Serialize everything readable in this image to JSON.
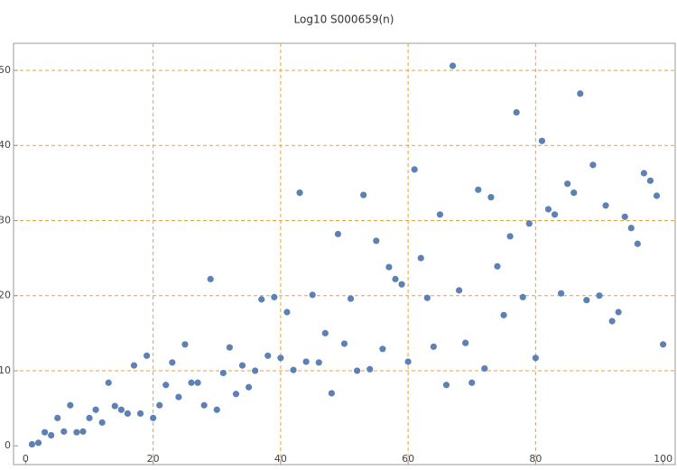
{
  "chart_data": {
    "type": "scatter",
    "title": "Log10 S000659(n)",
    "x": [
      1,
      2,
      3,
      4,
      5,
      6,
      7,
      8,
      9,
      10,
      11,
      12,
      13,
      14,
      15,
      16,
      17,
      18,
      19,
      20,
      21,
      22,
      23,
      24,
      25,
      26,
      27,
      28,
      29,
      30,
      31,
      32,
      33,
      34,
      35,
      36,
      37,
      38,
      39,
      40,
      41,
      42,
      43,
      44,
      45,
      46,
      47,
      48,
      49,
      50,
      51,
      52,
      53,
      54,
      55,
      56,
      57,
      58,
      59,
      60,
      61,
      62,
      63,
      64,
      65,
      66,
      67,
      68,
      69,
      70,
      71,
      72,
      73,
      74,
      75,
      76,
      77,
      78,
      79,
      80,
      81,
      82,
      83,
      84,
      85,
      86,
      87,
      88,
      89,
      90,
      91,
      92,
      93,
      94,
      95,
      96,
      97,
      98,
      99,
      100
    ],
    "values": [
      0.2,
      0.4,
      1.8,
      1.4,
      3.7,
      1.9,
      5.4,
      1.8,
      1.9,
      3.7,
      4.8,
      3.1,
      8.4,
      5.3,
      4.8,
      4.3,
      10.7,
      4.3,
      12.0,
      3.7,
      5.4,
      8.1,
      11.1,
      6.5,
      13.5,
      8.4,
      8.4,
      5.4,
      22.2,
      4.8,
      9.7,
      13.1,
      6.9,
      10.7,
      7.8,
      10.0,
      19.5,
      12.0,
      19.8,
      11.7,
      17.8,
      10.1,
      33.7,
      11.2,
      20.1,
      11.1,
      15.0,
      7.0,
      28.2,
      13.6,
      19.6,
      10.0,
      33.4,
      10.2,
      27.3,
      12.9,
      23.8,
      22.2,
      21.5,
      11.2,
      36.8,
      25.0,
      19.7,
      13.2,
      30.8,
      8.1,
      50.6,
      20.7,
      13.7,
      8.4,
      34.1,
      10.3,
      33.1,
      23.9,
      17.4,
      27.9,
      44.4,
      19.8,
      29.6,
      11.7,
      40.6,
      31.5,
      30.8,
      20.3,
      34.9,
      33.7,
      46.9,
      19.4,
      37.4,
      20.0,
      32.0,
      16.6,
      17.8,
      30.5,
      29.0,
      26.9,
      36.3,
      35.3,
      33.3,
      13.5
    ],
    "color": "#5e81b5",
    "xlim": [
      -1.9,
      101.9
    ],
    "xticks": [
      0,
      20,
      40,
      60,
      80,
      100
    ],
    "ylim": [
      -2.5,
      53.6
    ],
    "yticks": [
      0,
      10,
      20,
      30,
      40,
      50
    ],
    "grid": true,
    "grid_color": "#e8a23c"
  }
}
